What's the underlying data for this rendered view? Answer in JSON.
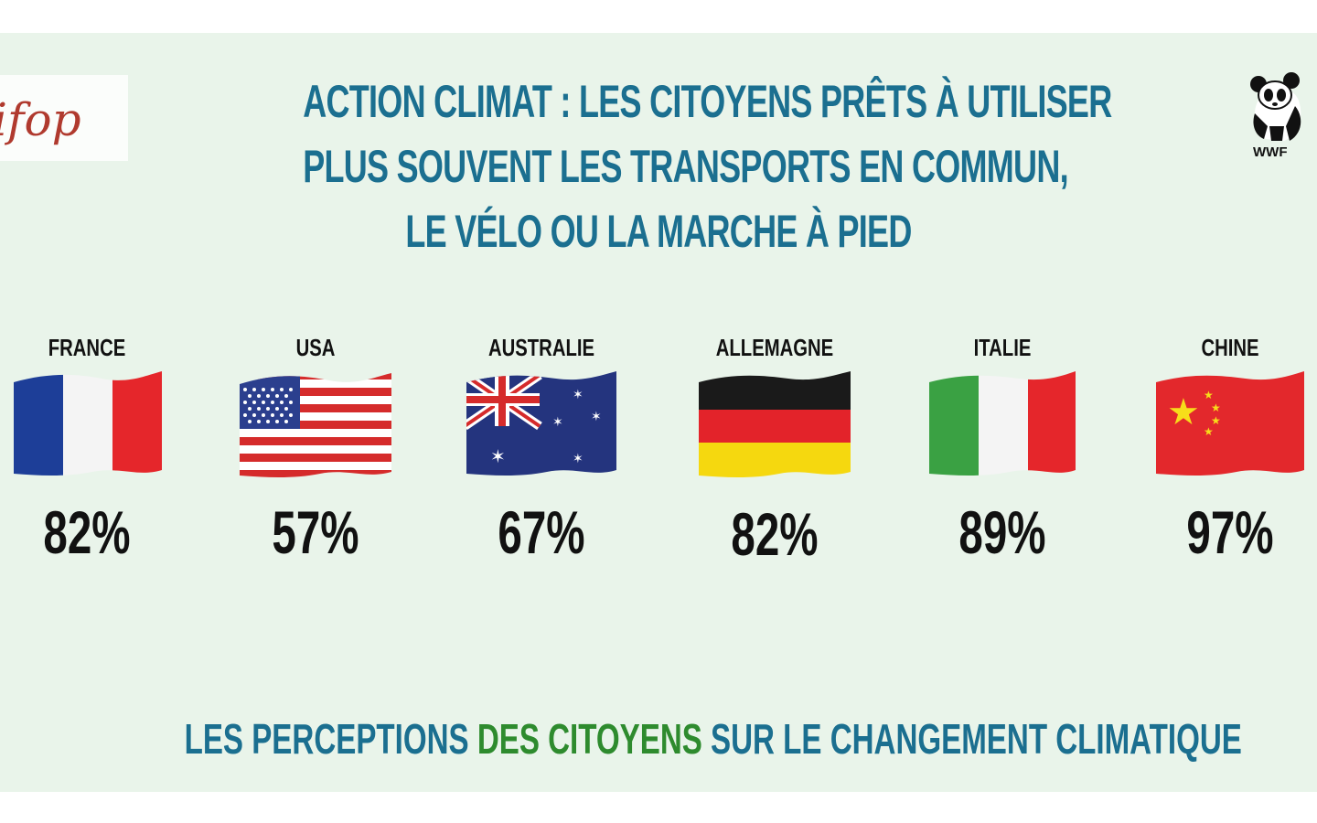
{
  "logos": {
    "left": "ifop",
    "right": "WWF"
  },
  "title_lines": [
    "ACTION CLIMAT : LES CITOYENS PRÊTS À  UTILISER",
    "PLUS SOUVENT LES TRANSPORTS EN COMMUN,",
    "LE VÉLO OU LA MARCHE À PIED"
  ],
  "countries": [
    {
      "name": "FRANCE",
      "value": "82%",
      "flag": "france-flag"
    },
    {
      "name": "USA",
      "value": "57%",
      "flag": "usa-flag"
    },
    {
      "name": "AUSTRALIE",
      "value": "67%",
      "flag": "australia-flag"
    },
    {
      "name": "ALLEMAGNE",
      "value": "82%",
      "flag": "germany-flag"
    },
    {
      "name": "ITALIE",
      "value": "89%",
      "flag": "italy-flag"
    },
    {
      "name": "CHINE",
      "value": "97%",
      "flag": "china-flag"
    }
  ],
  "footer": {
    "part1": "LES PERCEPTIONS ",
    "part2": "DES CITOYENS",
    "part3": " SUR LE CHANGEMENT CLIMATIQUE"
  },
  "colors": {
    "title": "#1b6f90",
    "footer_highlight": "#2e8b2e",
    "background": "#e9f4ea"
  }
}
